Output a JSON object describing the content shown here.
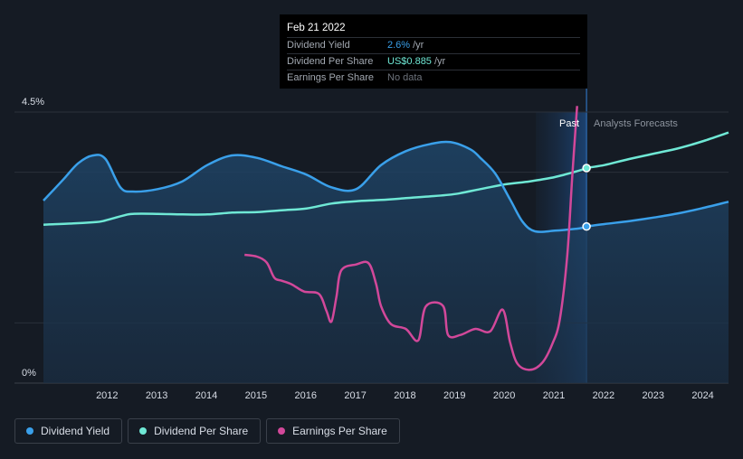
{
  "tooltip": {
    "date": "Feb 21 2022",
    "rows": [
      {
        "label": "Dividend Yield",
        "value": "2.6%",
        "unit": "/yr"
      },
      {
        "label": "Dividend Per Share",
        "value": "US$0.885",
        "unit": "/yr"
      },
      {
        "label": "Earnings Per Share",
        "value": "No data",
        "unit": ""
      }
    ]
  },
  "labels": {
    "past": "Past",
    "forecast": "Analysts Forecasts"
  },
  "legend": {
    "dividend_yield": "Dividend Yield",
    "dividend_per_share": "Dividend Per Share",
    "earnings_per_share": "Earnings Per Share"
  },
  "colors": {
    "dividend_yield": "#3aa0ea",
    "dividend_per_share": "#6fe8d5",
    "earnings_per_share": "#d2489a",
    "background": "#151b24"
  },
  "chart_data": {
    "type": "line",
    "y_ticks": [
      "4.5%",
      "0%"
    ],
    "ylim": [
      0,
      4.5
    ],
    "x_ticks": [
      2012,
      2013,
      2014,
      2015,
      2016,
      2017,
      2018,
      2019,
      2020,
      2021,
      2022,
      2023,
      2024
    ],
    "xlim": [
      2011.2,
      2025.0
    ],
    "past_forecast_split": 2022.14,
    "grid": true,
    "series": [
      {
        "name": "Dividend Yield",
        "key": "dividend_yield",
        "values": [
          [
            2011.2,
            3.03
          ],
          [
            2011.6,
            3.38
          ],
          [
            2011.9,
            3.65
          ],
          [
            2012.2,
            3.78
          ],
          [
            2012.45,
            3.72
          ],
          [
            2012.75,
            3.25
          ],
          [
            2013.0,
            3.18
          ],
          [
            2013.5,
            3.22
          ],
          [
            2014.0,
            3.35
          ],
          [
            2014.5,
            3.62
          ],
          [
            2015.0,
            3.78
          ],
          [
            2015.5,
            3.74
          ],
          [
            2016.0,
            3.6
          ],
          [
            2016.5,
            3.46
          ],
          [
            2017.0,
            3.25
          ],
          [
            2017.5,
            3.22
          ],
          [
            2018.0,
            3.62
          ],
          [
            2018.5,
            3.85
          ],
          [
            2019.0,
            3.97
          ],
          [
            2019.4,
            4.0
          ],
          [
            2019.8,
            3.88
          ],
          [
            2020.0,
            3.74
          ],
          [
            2020.3,
            3.48
          ],
          [
            2020.6,
            3.05
          ],
          [
            2020.85,
            2.68
          ],
          [
            2021.1,
            2.52
          ],
          [
            2021.5,
            2.53
          ],
          [
            2022.0,
            2.57
          ],
          [
            2022.14,
            2.6
          ],
          [
            2022.5,
            2.64
          ],
          [
            2023.0,
            2.69
          ],
          [
            2023.5,
            2.75
          ],
          [
            2024.0,
            2.82
          ],
          [
            2024.5,
            2.91
          ],
          [
            2025.0,
            3.01
          ]
        ]
      },
      {
        "name": "Dividend Per Share",
        "key": "dividend_per_share",
        "values": [
          [
            2011.2,
            2.63
          ],
          [
            2011.8,
            2.65
          ],
          [
            2012.2,
            2.67
          ],
          [
            2012.4,
            2.69
          ],
          [
            2012.8,
            2.78
          ],
          [
            2013.0,
            2.81
          ],
          [
            2013.5,
            2.81
          ],
          [
            2014.0,
            2.8
          ],
          [
            2014.5,
            2.8
          ],
          [
            2015.0,
            2.83
          ],
          [
            2015.5,
            2.84
          ],
          [
            2016.0,
            2.87
          ],
          [
            2016.5,
            2.9
          ],
          [
            2017.0,
            2.98
          ],
          [
            2017.5,
            3.02
          ],
          [
            2018.0,
            3.04
          ],
          [
            2018.5,
            3.07
          ],
          [
            2019.0,
            3.1
          ],
          [
            2019.5,
            3.14
          ],
          [
            2020.0,
            3.22
          ],
          [
            2020.5,
            3.3
          ],
          [
            2021.0,
            3.35
          ],
          [
            2021.5,
            3.42
          ],
          [
            2022.0,
            3.53
          ],
          [
            2022.14,
            3.57
          ],
          [
            2022.5,
            3.62
          ],
          [
            2023.0,
            3.72
          ],
          [
            2023.5,
            3.81
          ],
          [
            2024.0,
            3.9
          ],
          [
            2024.5,
            4.02
          ],
          [
            2025.0,
            4.16
          ]
        ]
      },
      {
        "name": "Earnings Per Share",
        "key": "earnings_per_share",
        "values": [
          [
            2015.25,
            2.13
          ],
          [
            2015.5,
            2.1
          ],
          [
            2015.7,
            2.0
          ],
          [
            2015.85,
            1.75
          ],
          [
            2016.0,
            1.7
          ],
          [
            2016.2,
            1.64
          ],
          [
            2016.45,
            1.52
          ],
          [
            2016.75,
            1.48
          ],
          [
            2016.9,
            1.2
          ],
          [
            2017.0,
            1.02
          ],
          [
            2017.1,
            1.42
          ],
          [
            2017.2,
            1.87
          ],
          [
            2017.5,
            1.97
          ],
          [
            2017.75,
            1.99
          ],
          [
            2017.9,
            1.65
          ],
          [
            2018.0,
            1.28
          ],
          [
            2018.2,
            0.98
          ],
          [
            2018.5,
            0.9
          ],
          [
            2018.75,
            0.71
          ],
          [
            2018.9,
            1.27
          ],
          [
            2019.25,
            1.28
          ],
          [
            2019.35,
            0.8
          ],
          [
            2019.6,
            0.8
          ],
          [
            2019.9,
            0.9
          ],
          [
            2020.2,
            0.86
          ],
          [
            2020.45,
            1.22
          ],
          [
            2020.6,
            0.68
          ],
          [
            2020.75,
            0.32
          ],
          [
            2021.0,
            0.22
          ],
          [
            2021.25,
            0.34
          ],
          [
            2021.45,
            0.65
          ],
          [
            2021.6,
            1.05
          ],
          [
            2021.75,
            2.1
          ],
          [
            2021.85,
            3.4
          ],
          [
            2021.95,
            4.6
          ]
        ]
      }
    ],
    "markers": [
      {
        "series": "dividend_yield",
        "x": 2022.14,
        "y": 2.6
      },
      {
        "series": "dividend_per_share",
        "x": 2022.14,
        "y": 3.57
      }
    ]
  }
}
